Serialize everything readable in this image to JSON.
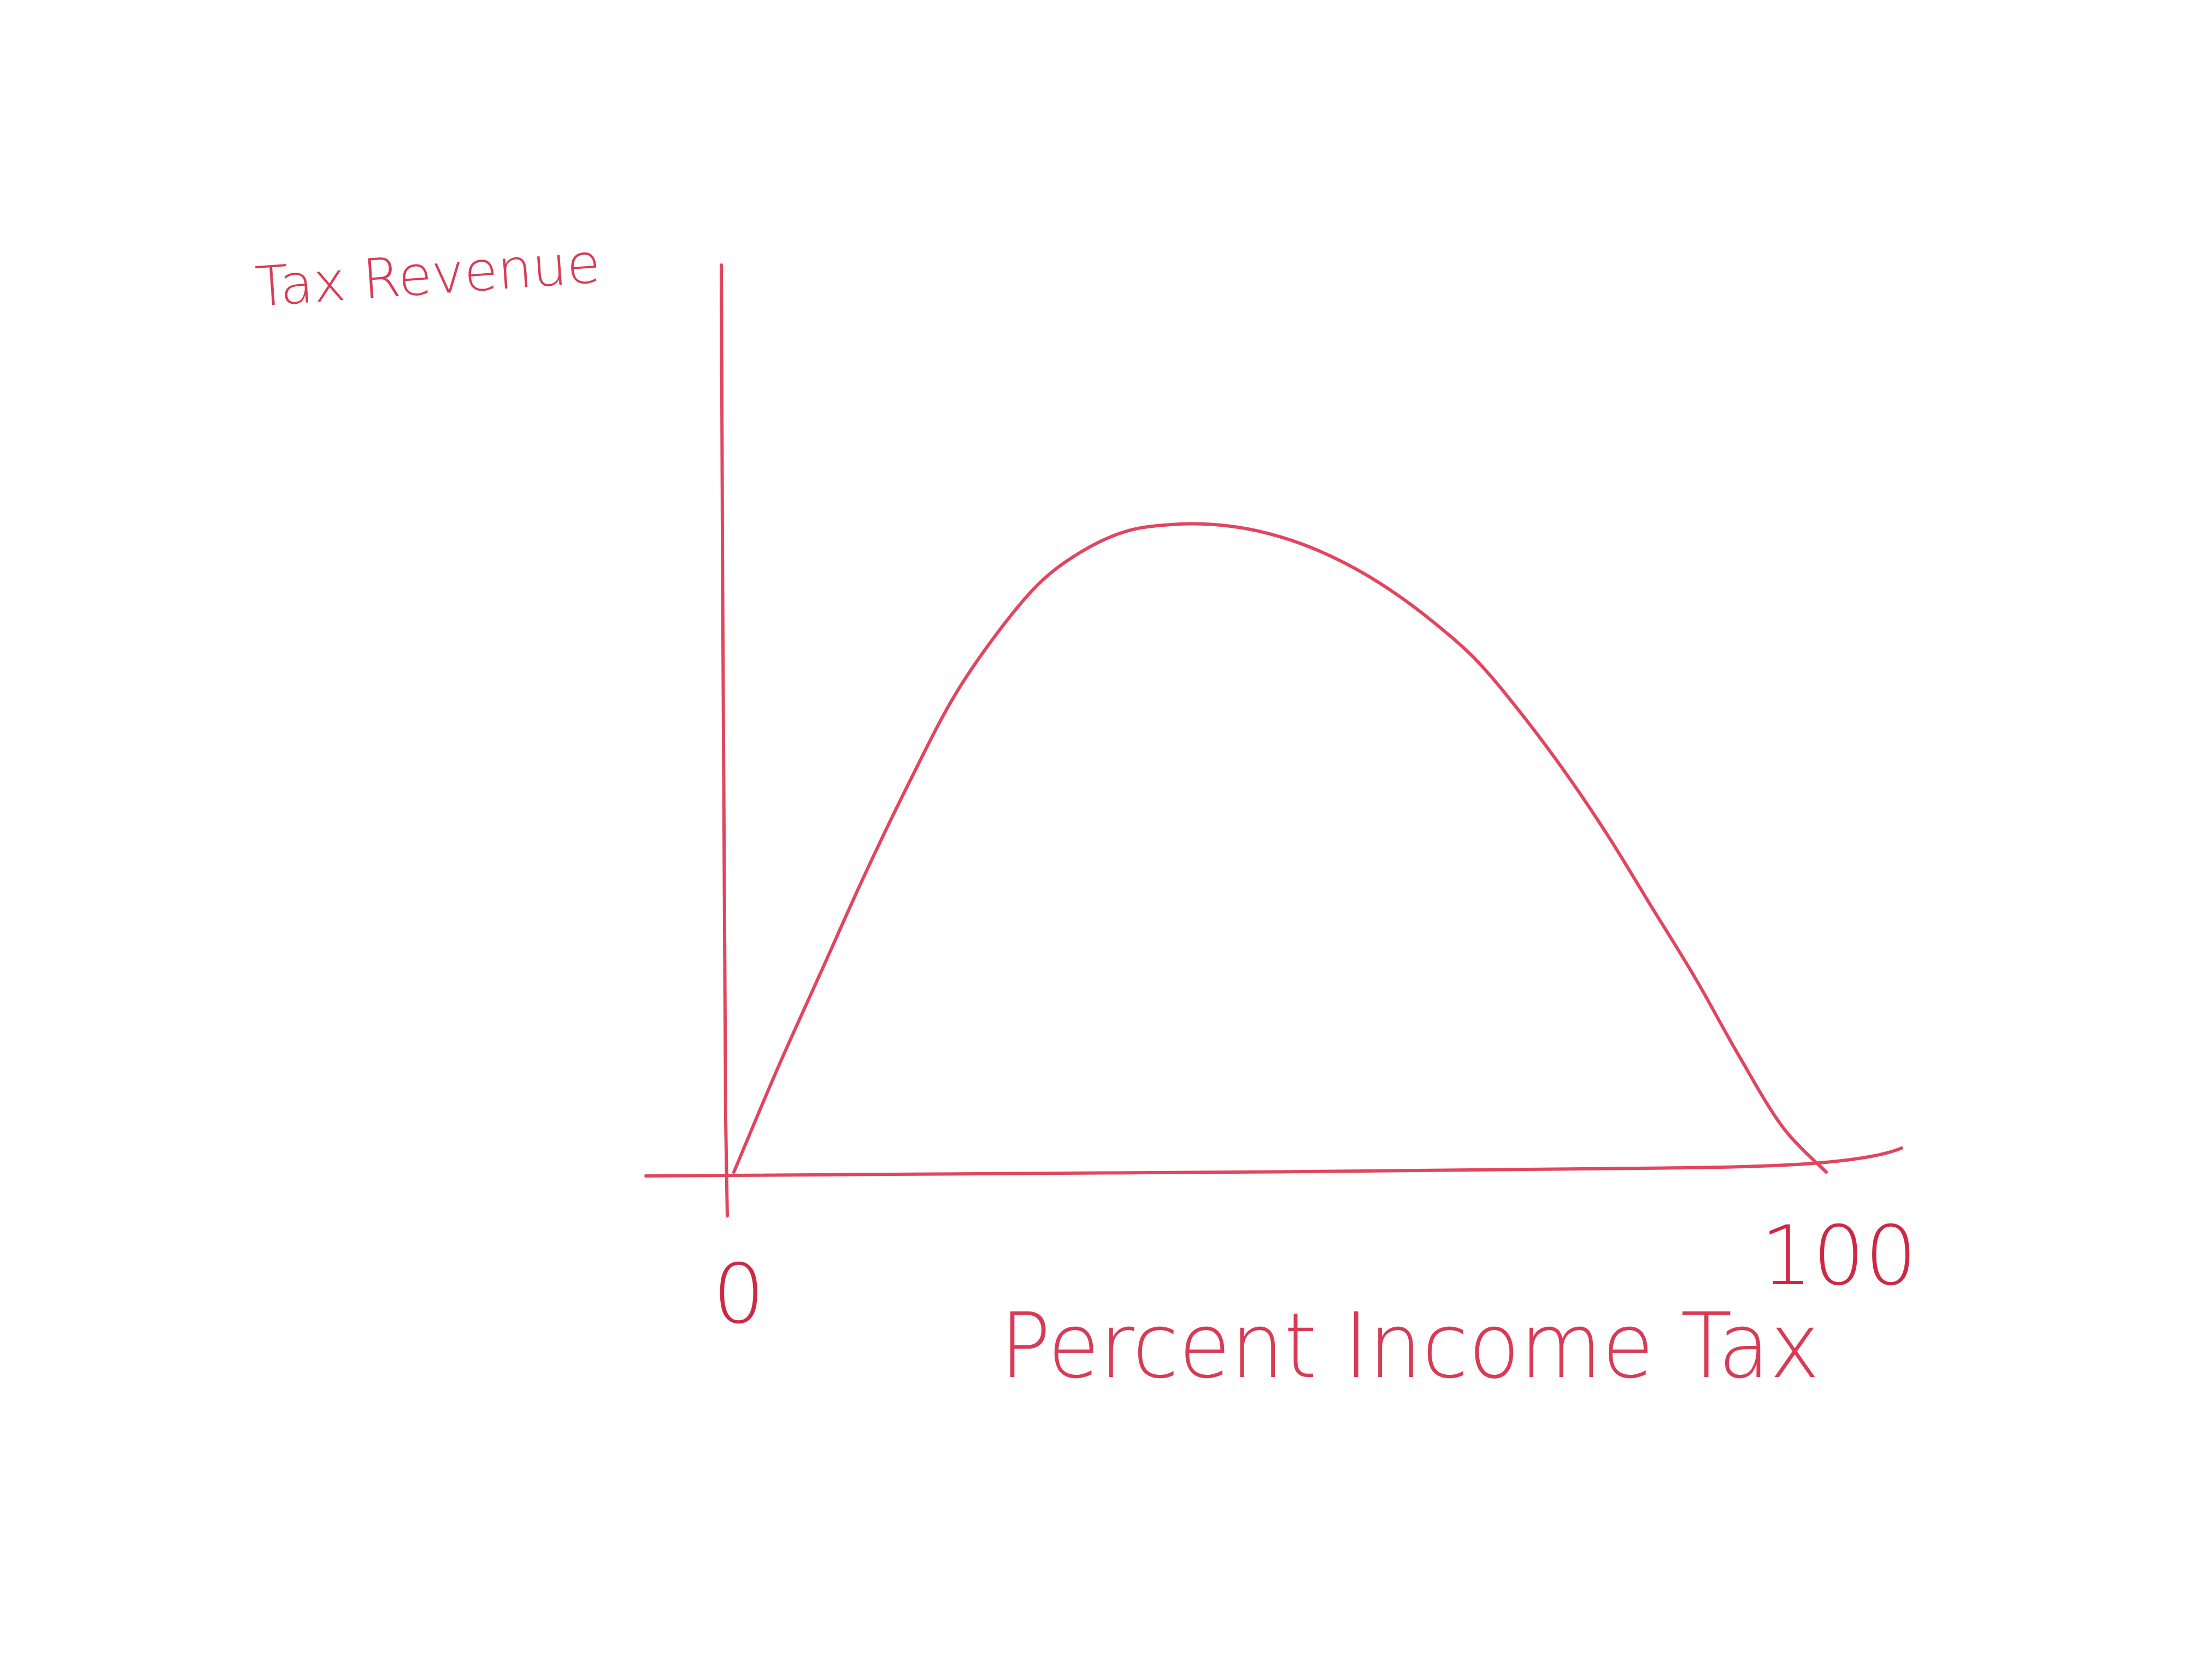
{
  "chart_data": {
    "type": "line",
    "title": "",
    "xlabel": "Percent Income Tax",
    "ylabel": "Tax Revenue",
    "xlim": [
      0,
      100
    ],
    "x_tick_labels": [
      "0",
      "100"
    ],
    "grid": false,
    "legend": "none",
    "series": [
      {
        "x": [
          0,
          4,
          8,
          12,
          16,
          20,
          24,
          28,
          32,
          36,
          40,
          44,
          48,
          52,
          56,
          60,
          64,
          68,
          72,
          76,
          80,
          84,
          88,
          92,
          96,
          100
        ],
        "y": [
          0.0,
          0.16,
          0.31,
          0.46,
          0.6,
          0.73,
          0.83,
          0.91,
          0.96,
          0.99,
          1.0,
          1.0,
          0.99,
          0.97,
          0.94,
          0.9,
          0.85,
          0.79,
          0.71,
          0.62,
          0.52,
          0.41,
          0.3,
          0.18,
          0.07,
          0.0
        ]
      }
    ],
    "colors": {
      "ink": "#e2455f",
      "ink_label": "#d93a55",
      "ink_tick": "#cf2845"
    }
  }
}
